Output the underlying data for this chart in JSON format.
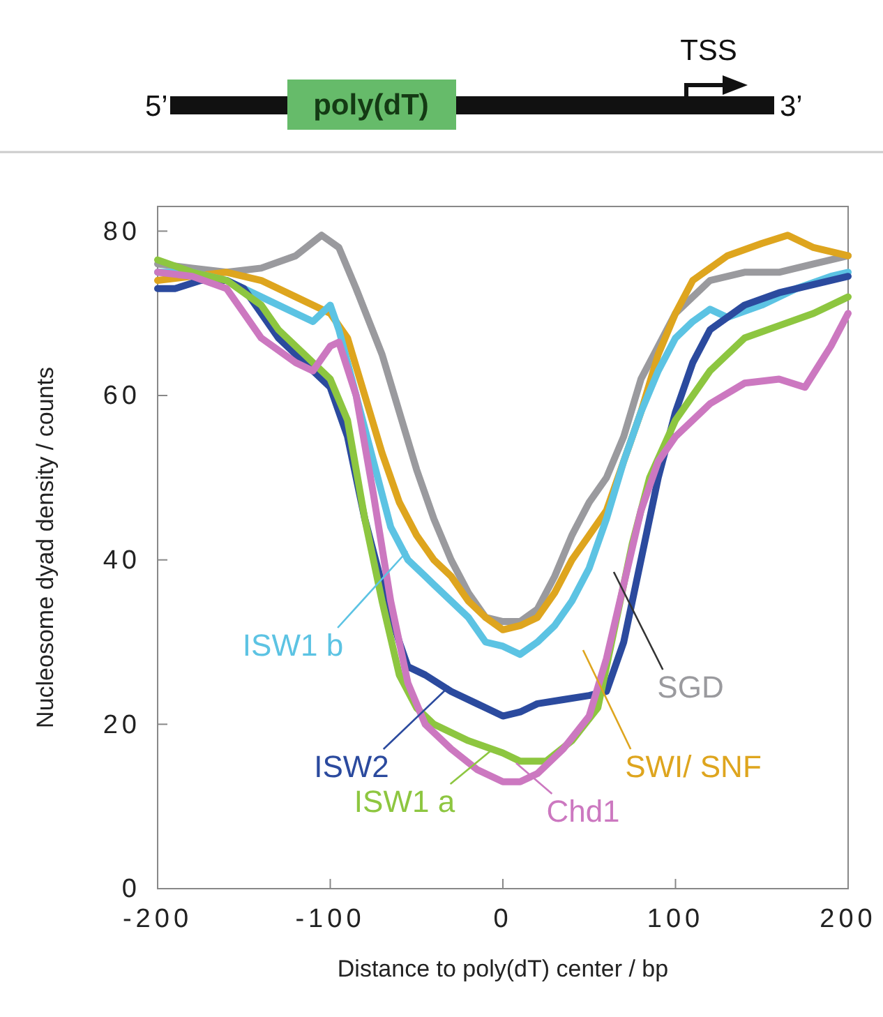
{
  "chart_data": {
    "type": "line",
    "xlabel": "Distance to poly(dT) center / bp",
    "ylabel": "Nucleosome dyad density / counts",
    "xlim": [
      -200,
      200
    ],
    "xticks": [
      -200,
      -100,
      0,
      100,
      200
    ],
    "ylim": [
      0,
      83
    ],
    "yticks": [
      0,
      20,
      40,
      60,
      80
    ],
    "grid": false,
    "legend": "bottom",
    "marker": "none",
    "line_style": "solid",
    "annotations": [
      "5’",
      "poly(dT)",
      "TSS",
      "3’"
    ],
    "series": [
      {
        "name": "SGD",
        "color": "#9a9a9e",
        "x": [
          -200,
          -180,
          -160,
          -140,
          -120,
          -105,
          -95,
          -85,
          -70,
          -60,
          -50,
          -40,
          -30,
          -20,
          -10,
          0,
          10,
          20,
          30,
          40,
          50,
          60,
          70,
          80,
          100,
          120,
          140,
          160,
          180,
          200
        ],
        "values": [
          76,
          75.5,
          75,
          75.5,
          77,
          79.5,
          78,
          73,
          65,
          58,
          51,
          45,
          40,
          36,
          33,
          32.5,
          32.5,
          34,
          38,
          43,
          47,
          50,
          55,
          62,
          70,
          74,
          75,
          75,
          76,
          77
        ]
      },
      {
        "name": "SWI/ SNF",
        "color": "#dea51e",
        "x": [
          -200,
          -180,
          -160,
          -140,
          -120,
          -100,
          -90,
          -80,
          -70,
          -60,
          -50,
          -40,
          -30,
          -20,
          -10,
          0,
          10,
          20,
          30,
          40,
          50,
          60,
          70,
          80,
          90,
          100,
          110,
          130,
          150,
          165,
          180,
          200
        ],
        "values": [
          74,
          74.5,
          75,
          74,
          72,
          70,
          67,
          60,
          53,
          47,
          43,
          40,
          38,
          35,
          33,
          31.5,
          32,
          33,
          36,
          40,
          43,
          46,
          52,
          58,
          65,
          70,
          74,
          77,
          78.5,
          79.5,
          78,
          77
        ]
      },
      {
        "name": "ISW1 b",
        "color": "#5cc3e3",
        "x": [
          -200,
          -180,
          -160,
          -140,
          -120,
          -110,
          -100,
          -95,
          -85,
          -75,
          -65,
          -55,
          -45,
          -40,
          -30,
          -20,
          -10,
          0,
          10,
          20,
          30,
          40,
          50,
          60,
          70,
          80,
          90,
          100,
          110,
          120,
          130,
          150,
          170,
          190,
          200
        ],
        "values": [
          75,
          75,
          74,
          72,
          70,
          69,
          71,
          68,
          60,
          52,
          44,
          40,
          38,
          37,
          35,
          33,
          30,
          29.5,
          28.5,
          30,
          32,
          35,
          39,
          45,
          52,
          58,
          63,
          67,
          69,
          70.5,
          69.5,
          71,
          73,
          74.5,
          75
        ]
      },
      {
        "name": "ISW2",
        "color": "#2b4a9e",
        "x": [
          -200,
          -190,
          -175,
          -160,
          -150,
          -140,
          -130,
          -120,
          -100,
          -90,
          -80,
          -70,
          -60,
          -55,
          -45,
          -30,
          -15,
          0,
          10,
          20,
          35,
          50,
          60,
          70,
          80,
          90,
          100,
          110,
          120,
          140,
          160,
          180,
          200
        ],
        "values": [
          73,
          73,
          74,
          74,
          73,
          70,
          67,
          65,
          61,
          55,
          45,
          37,
          30,
          27,
          26,
          24,
          22.5,
          21,
          21.5,
          22.5,
          23,
          23.5,
          24,
          30,
          40,
          50,
          58,
          64,
          68,
          71,
          72.5,
          73.5,
          74.5
        ]
      },
      {
        "name": "ISW1 a",
        "color": "#8dc640",
        "x": [
          -200,
          -180,
          -160,
          -140,
          -130,
          -120,
          -100,
          -90,
          -80,
          -70,
          -60,
          -50,
          -40,
          -20,
          0,
          10,
          25,
          40,
          55,
          65,
          75,
          85,
          100,
          120,
          140,
          160,
          180,
          200
        ],
        "values": [
          76.5,
          75,
          74,
          71,
          68,
          66,
          62,
          57,
          45,
          35,
          26,
          22,
          20,
          18,
          16.5,
          15.5,
          15.5,
          18,
          22,
          32,
          42,
          50,
          57,
          63,
          67,
          68.5,
          70,
          72
        ]
      },
      {
        "name": "Chd1",
        "color": "#cc78c0",
        "x": [
          -200,
          -180,
          -160,
          -150,
          -140,
          -120,
          -110,
          -100,
          -95,
          -85,
          -75,
          -65,
          -55,
          -45,
          -30,
          -15,
          0,
          10,
          20,
          35,
          50,
          60,
          70,
          80,
          90,
          100,
          120,
          140,
          160,
          175,
          190,
          200
        ],
        "values": [
          75,
          74.5,
          73,
          70,
          67,
          64,
          63,
          66,
          66.5,
          60,
          48,
          35,
          25,
          20,
          17,
          14.5,
          13,
          13,
          14,
          17,
          21,
          28,
          37,
          46,
          52,
          55,
          59,
          61.5,
          62,
          61,
          66,
          70
        ]
      }
    ]
  }
}
